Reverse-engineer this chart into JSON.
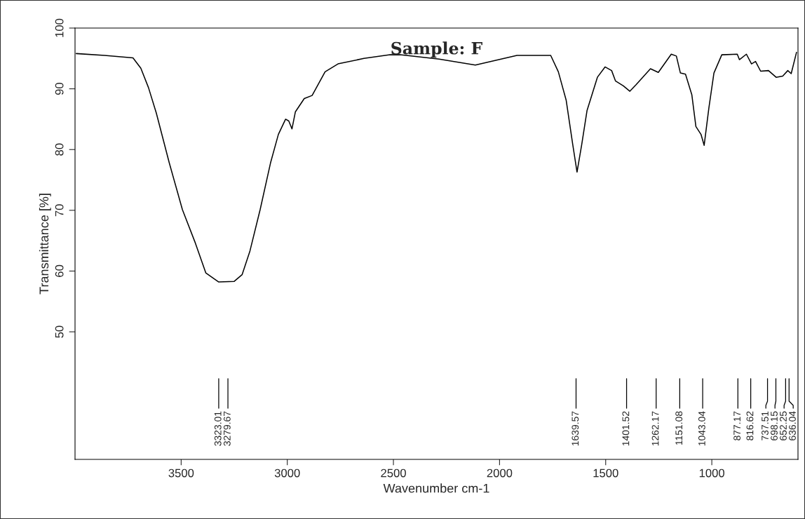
{
  "chart_data": {
    "type": "line",
    "title": "Sample: F",
    "xlabel": "Wavenumber cm-1",
    "ylabel": "Transmittance [%]",
    "xlim": [
      4000,
      594
    ],
    "ylim": [
      29,
      100
    ],
    "xticks": [
      3500,
      3000,
      2500,
      2000,
      1500,
      1000
    ],
    "yticks": [
      50,
      60,
      70,
      80,
      90,
      100
    ],
    "grid": false,
    "legend": false,
    "series": [
      {
        "color": "#000000",
        "line_style": "solid",
        "marker": "none",
        "x": [
          3994,
          3861,
          3727,
          3690,
          3654,
          3617,
          3556,
          3494,
          3433,
          3384,
          3323,
          3250,
          3213,
          3176,
          3128,
          3079,
          3042,
          3008,
          2993,
          2978,
          2962,
          2920,
          2883,
          2822,
          2761,
          2639,
          2516,
          2469,
          2285,
          2114,
          1918,
          1759,
          1723,
          1686,
          1655,
          1635,
          1613,
          1588,
          1539,
          1503,
          1472,
          1454,
          1417,
          1386,
          1356,
          1289,
          1252,
          1191,
          1167,
          1148,
          1124,
          1094,
          1075,
          1051,
          1036,
          1014,
          990,
          953,
          880,
          870,
          837,
          813,
          794,
          770,
          733,
          697,
          666,
          642,
          626,
          601
        ],
        "values": [
          95.8,
          95.5,
          95.1,
          93.4,
          90.2,
          86.0,
          77.8,
          70.1,
          64.6,
          59.7,
          58.2,
          58.3,
          59.4,
          63.3,
          70.1,
          77.8,
          82.5,
          85.0,
          84.7,
          83.4,
          86.2,
          88.4,
          88.9,
          92.8,
          94.1,
          95.0,
          95.6,
          95.6,
          94.9,
          93.9,
          95.5,
          95.5,
          92.8,
          88.1,
          80.8,
          76.3,
          80.8,
          86.4,
          91.9,
          93.6,
          93.0,
          91.3,
          90.5,
          89.6,
          90.7,
          93.3,
          92.7,
          95.7,
          95.4,
          92.6,
          92.4,
          89.0,
          83.8,
          82.5,
          80.7,
          86.8,
          92.6,
          95.6,
          95.7,
          94.8,
          95.7,
          94.1,
          94.5,
          92.9,
          93.0,
          91.9,
          92.1,
          93.0,
          92.5,
          96.0
        ]
      }
    ],
    "ref_lines": [
      {
        "axis": "x",
        "value": 3323.01,
        "label": "3323.01"
      },
      {
        "axis": "x",
        "value": 3279.67,
        "label": "3279.67"
      },
      {
        "axis": "x",
        "value": 1639.57,
        "label": "1639.57"
      },
      {
        "axis": "x",
        "value": 1401.52,
        "label": "1401.52"
      },
      {
        "axis": "x",
        "value": 1262.17,
        "label": "1262.17"
      },
      {
        "axis": "x",
        "value": 1151.08,
        "label": "1151.08"
      },
      {
        "axis": "x",
        "value": 1043.04,
        "label": "1043.04"
      },
      {
        "axis": "x",
        "value": 877.17,
        "label": "877.17"
      },
      {
        "axis": "x",
        "value": 816.62,
        "label": "816.62"
      },
      {
        "axis": "x",
        "value": 737.51,
        "label": "737.51"
      },
      {
        "axis": "x",
        "value": 698.15,
        "label": "698.15"
      },
      {
        "axis": "x",
        "value": 652.25,
        "label": "652.25"
      },
      {
        "axis": "x",
        "value": 636.04,
        "label": "636.04"
      }
    ]
  }
}
